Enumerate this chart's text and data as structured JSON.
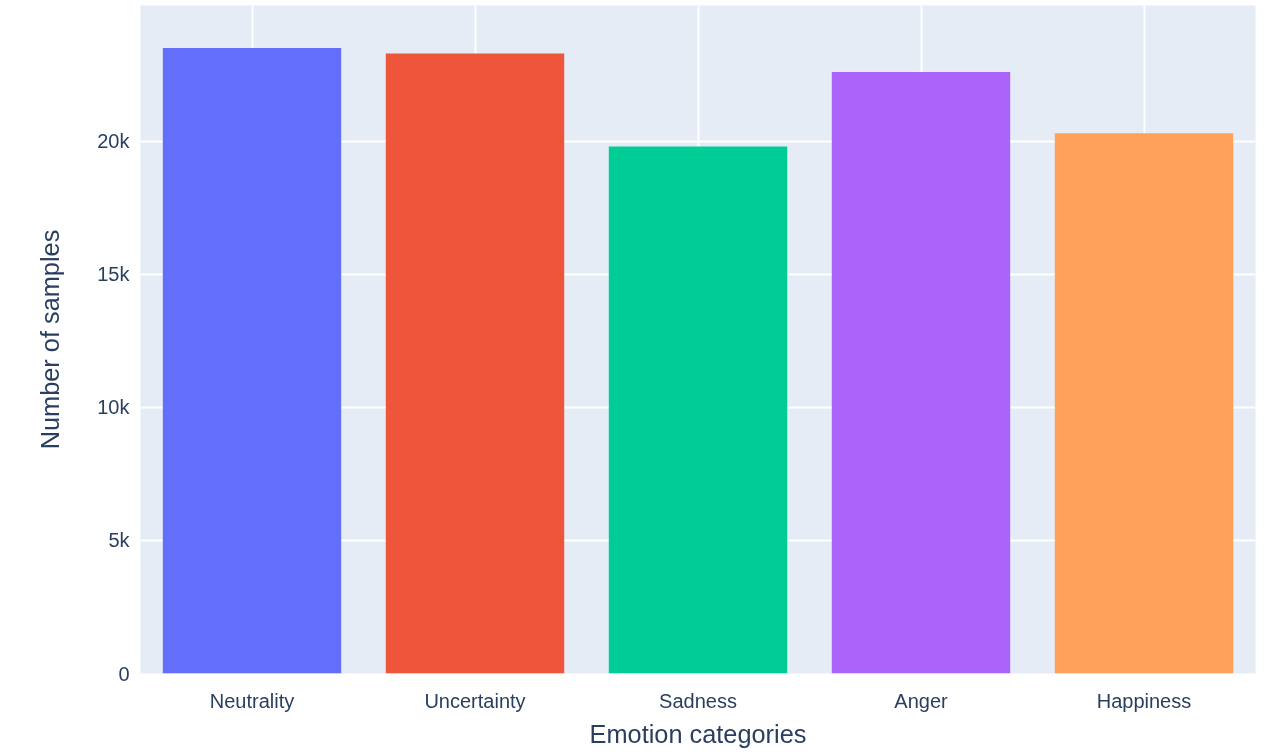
{
  "chart_data": {
    "type": "bar",
    "xlabel": "Emotion categories",
    "ylabel": "Number of samples",
    "categories": [
      "Neutrality",
      "Uncertainty",
      "Sadness",
      "Anger",
      "Happiness"
    ],
    "values": [
      23500,
      23300,
      19800,
      22600,
      20300
    ],
    "colors": [
      "#636efa",
      "#ef553b",
      "#00cc96",
      "#ab63fa",
      "#ffa15a"
    ],
    "ylim": [
      0,
      25100
    ],
    "yticks": [
      0,
      {
        "value": 5000,
        "label": "5k"
      },
      {
        "value": 10000,
        "label": "10k"
      },
      {
        "value": 15000,
        "label": "15k"
      },
      {
        "value": 20000,
        "label": "20k"
      }
    ],
    "grid": true
  }
}
